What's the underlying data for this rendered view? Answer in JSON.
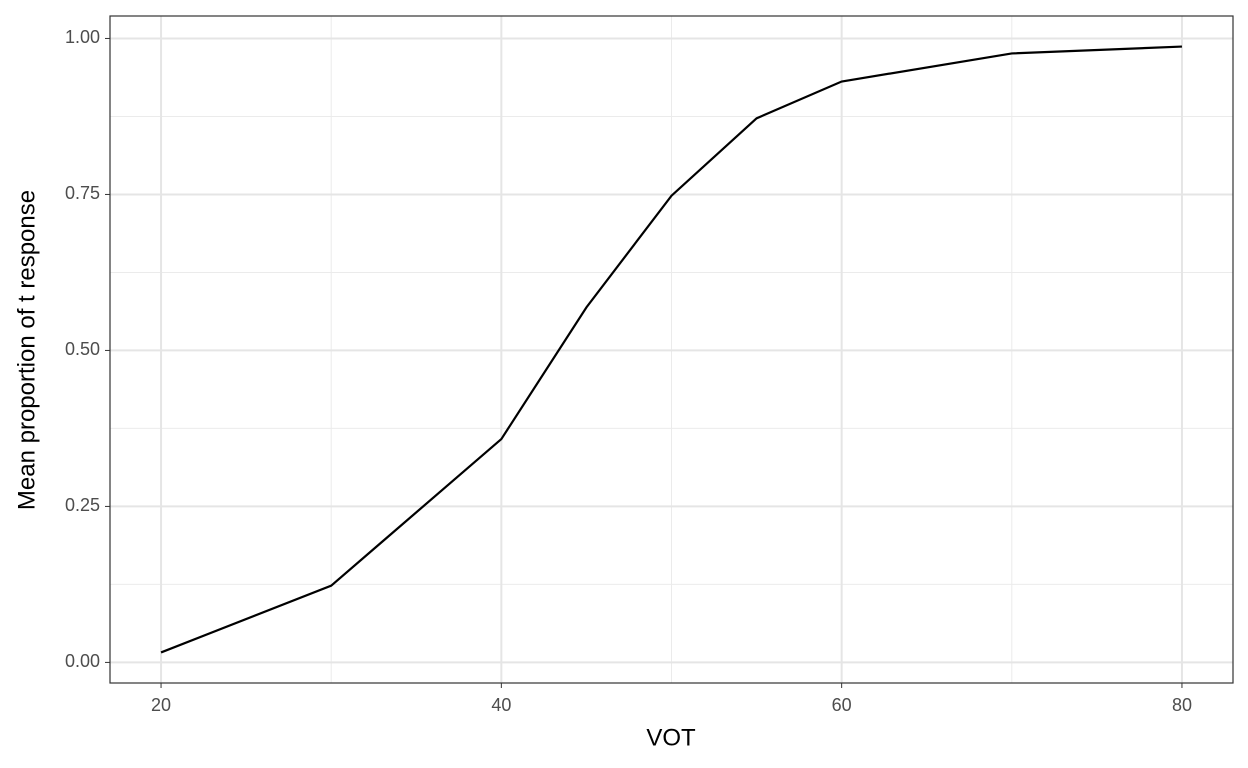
{
  "chart_data": {
    "type": "line",
    "x_label": "VOT",
    "y_label": "Mean proportion of t response",
    "x": [
      20,
      30,
      40,
      45,
      50,
      55,
      60,
      70,
      80
    ],
    "series": [
      {
        "color": "#000000",
        "values": [
          0.016,
          0.123,
          0.358,
          0.569,
          0.748,
          0.872,
          0.931,
          0.976,
          0.987
        ]
      }
    ],
    "xlim": [
      17,
      83
    ],
    "ylim": [
      -0.033,
      1.036
    ],
    "xticks": [
      20,
      40,
      60,
      80
    ],
    "yticks": [
      {
        "value": 0,
        "label": "0.00"
      },
      0.25,
      {
        "value": 0.5,
        "label": "0.50"
      },
      0.75,
      {
        "value": 1,
        "label": "1.00"
      }
    ],
    "grid": true
  }
}
